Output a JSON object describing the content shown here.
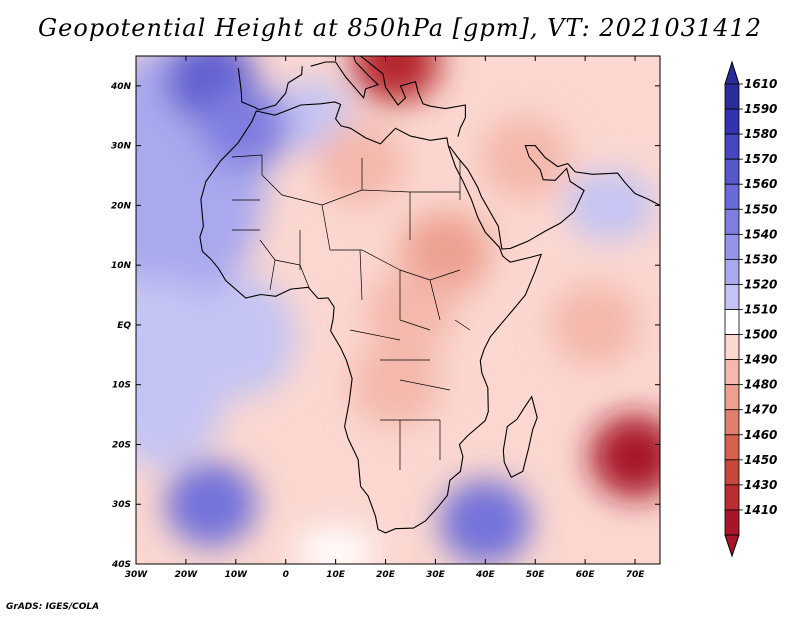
{
  "title": "Geopotential Height at 850hPa [gpm], VT: 2021031412",
  "footer": "GrADS: IGES/COLA",
  "colors": {
    "strong_red": "#b2182b",
    "red": "#d6604d",
    "light_red": "#f4a582",
    "pale_red": "#fbd7d0",
    "white": "#ffffff",
    "pale_blue": "#dcdcfa",
    "light_blue": "#a9a9ee",
    "blue": "#6a6ad8",
    "deep_blue": "#3333b0",
    "coast": "#000000",
    "background": "#ffffff"
  },
  "map": {
    "lon_range": [
      -30,
      75
    ],
    "lat_range": [
      -40,
      45
    ],
    "lon_ticks": [
      {
        "value": -30,
        "label": "30W"
      },
      {
        "value": -20,
        "label": "20W"
      },
      {
        "value": -10,
        "label": "10W"
      },
      {
        "value": 0,
        "label": "0"
      },
      {
        "value": 10,
        "label": "10E"
      },
      {
        "value": 20,
        "label": "20E"
      },
      {
        "value": 30,
        "label": "30E"
      },
      {
        "value": 40,
        "label": "40E"
      },
      {
        "value": 50,
        "label": "50E"
      },
      {
        "value": 60,
        "label": "60E"
      },
      {
        "value": 70,
        "label": "70E"
      }
    ],
    "lat_ticks": [
      {
        "value": 40,
        "label": "40N"
      },
      {
        "value": 30,
        "label": "30N"
      },
      {
        "value": 20,
        "label": "20N"
      },
      {
        "value": 10,
        "label": "10N"
      },
      {
        "value": 0,
        "label": "EQ"
      },
      {
        "value": -10,
        "label": "10S"
      },
      {
        "value": -20,
        "label": "20S"
      },
      {
        "value": -30,
        "label": "30S"
      },
      {
        "value": -40,
        "label": "40S"
      }
    ],
    "field_features": [
      {
        "name": "mediterranean-low",
        "lon": 22,
        "lat": 44,
        "value": 1420
      },
      {
        "name": "north-atlantic-high",
        "lon": -15,
        "lat": 41,
        "value": 1570
      },
      {
        "name": "canary-high",
        "lon": -8,
        "lat": 33,
        "value": 1550
      },
      {
        "name": "saharan-low",
        "lon": 15,
        "lat": 27,
        "value": 1490
      },
      {
        "name": "east-african-low",
        "lon": 32,
        "lat": 12,
        "value": 1480
      },
      {
        "name": "congo-low",
        "lon": 25,
        "lat": 2,
        "value": 1485
      },
      {
        "name": "southern-africa-low",
        "lon": 22,
        "lat": -10,
        "value": 1485
      },
      {
        "name": "tropical-cyclone-low",
        "lon": 70,
        "lat": -22,
        "value": 1410
      },
      {
        "name": "south-atlantic-high",
        "lon": -15,
        "lat": -30,
        "value": 1560
      },
      {
        "name": "south-indian-high",
        "lon": 40,
        "lat": -33,
        "value": 1560
      },
      {
        "name": "arabian-low",
        "lon": 48,
        "lat": 28,
        "value": 1490
      },
      {
        "name": "indian-ocean-low",
        "lon": 62,
        "lat": 0,
        "value": 1490
      }
    ]
  },
  "colorbar": {
    "labels": [
      "1610",
      "1590",
      "1580",
      "1570",
      "1560",
      "1550",
      "1540",
      "1530",
      "1520",
      "1510",
      "1500",
      "1490",
      "1480",
      "1470",
      "1460",
      "1450",
      "1430",
      "1410"
    ],
    "colors": [
      "#2b2b9a",
      "#3333b0",
      "#4646c0",
      "#5858cc",
      "#6a6ad8",
      "#7e7ee0",
      "#9494e8",
      "#a9a9ee",
      "#c4c4f4",
      "#ffffff",
      "#fbd7d0",
      "#f4b8ac",
      "#eda090",
      "#e07f70",
      "#d6604d",
      "#c8463c",
      "#bb2d30",
      "#a8142a"
    ]
  }
}
